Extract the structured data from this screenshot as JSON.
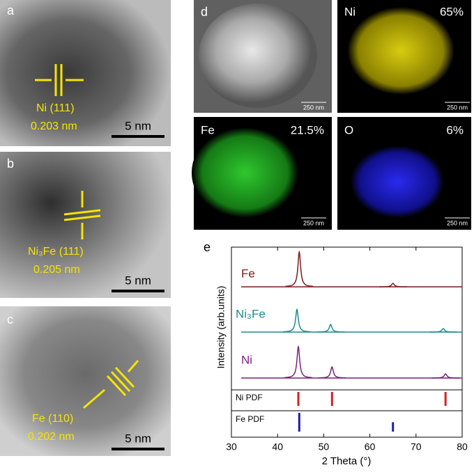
{
  "panels": {
    "a": {
      "label": "a",
      "plane": "Ni (111)",
      "spacing": "0.203 nm",
      "scale_bar": "5 nm"
    },
    "b": {
      "label": "b",
      "plane": "Ni₃Fe (111)",
      "spacing": "0.205 nm",
      "scale_bar": "5 nm"
    },
    "c": {
      "label": "c",
      "plane": "Fe (110)",
      "spacing": "0.202 nm",
      "scale_bar": "5 nm"
    },
    "d": {
      "label": "d",
      "scale_bar": "250 nm",
      "maps": [
        {
          "element": "Ni",
          "percent": "65%",
          "scale_bar": "250 nm"
        },
        {
          "element": "Fe",
          "percent": "21.5%",
          "scale_bar": "250 nm"
        },
        {
          "element": "O",
          "percent": "6%",
          "scale_bar": "250 nm"
        }
      ]
    }
  },
  "chart_data": {
    "type": "xrd",
    "label": "e",
    "x_label": "2 Theta (°)",
    "y_label": "Intensity (arb.units)",
    "xlim": [
      30,
      80
    ],
    "xticks": [
      30,
      40,
      50,
      60,
      70,
      80
    ],
    "series": [
      {
        "name": "Fe",
        "color": "#7a1c1c",
        "peaks": {
          "x": [
            44.7,
            65.0
          ],
          "heights": [
            1.0,
            0.1
          ]
        }
      },
      {
        "name": "Ni₃Fe",
        "color": "#1b8c8c",
        "peaks": {
          "x": [
            44.2,
            51.5,
            75.9
          ],
          "heights": [
            0.65,
            0.22,
            0.1
          ]
        }
      },
      {
        "name": "Ni",
        "color": "#7a1f7a",
        "peaks": {
          "x": [
            44.5,
            51.8,
            76.4
          ],
          "heights": [
            0.9,
            0.32,
            0.12
          ]
        }
      }
    ],
    "pdf": [
      {
        "name": "Ni PDF",
        "color": "#d42020",
        "x": [
          44.5,
          51.8,
          76.4
        ],
        "intensity": [
          1,
          1,
          1
        ]
      },
      {
        "name": "Fe PDF",
        "color": "#1c1cb0",
        "x": [
          44.7,
          65.0
        ],
        "intensity": [
          1,
          0.5
        ]
      }
    ]
  }
}
